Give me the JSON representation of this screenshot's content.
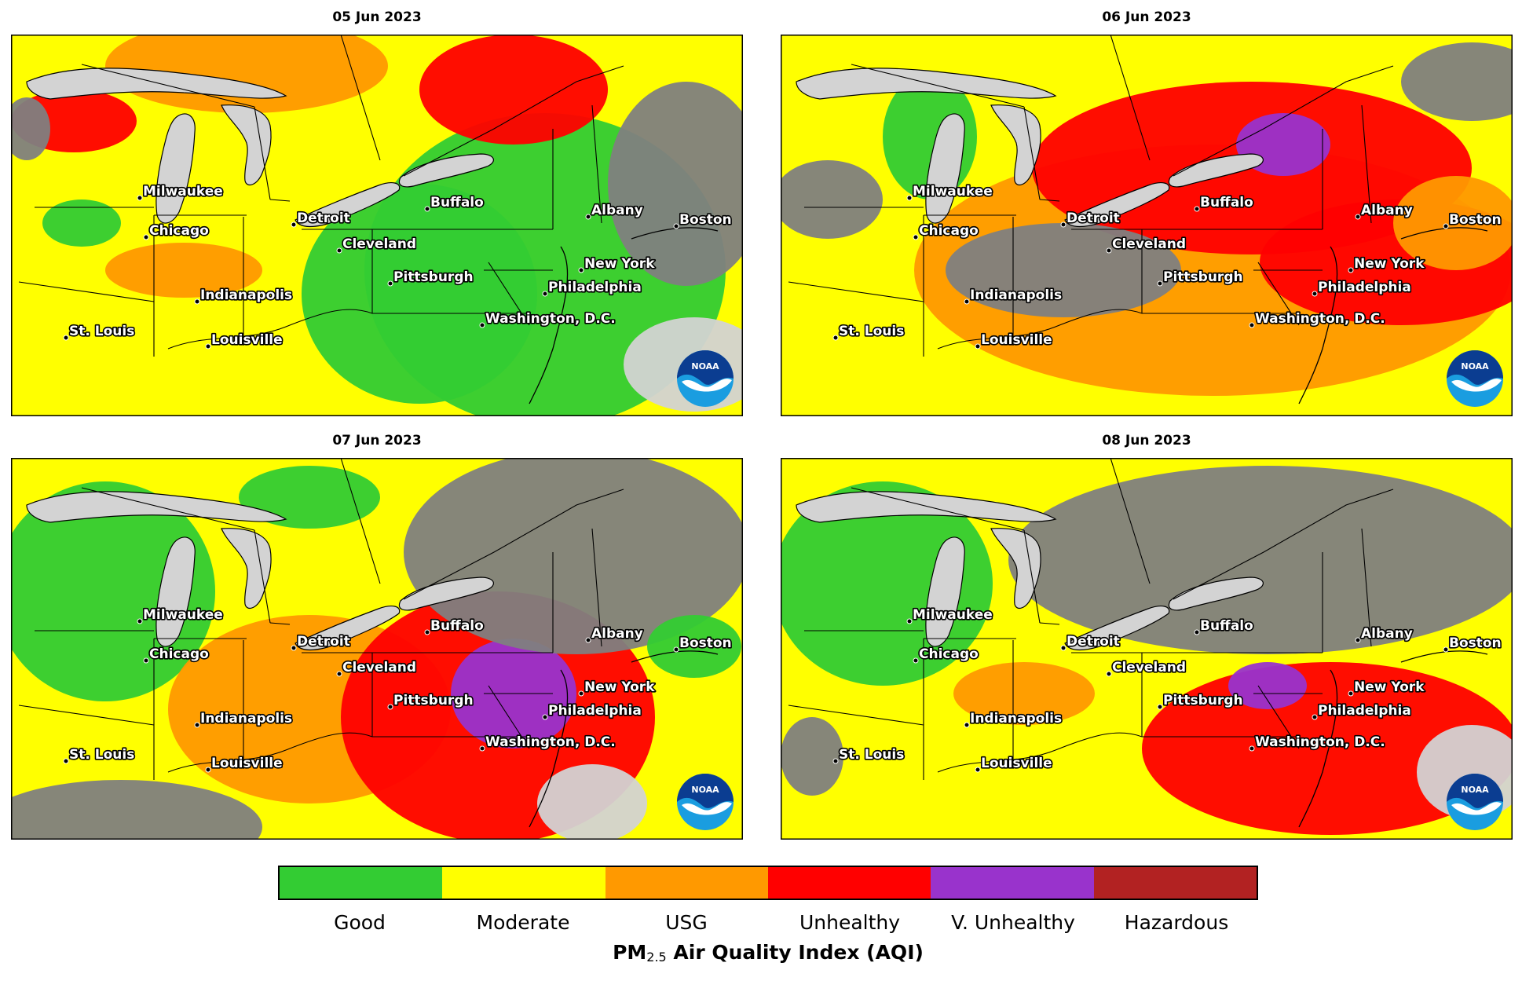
{
  "panels": [
    {
      "title": "05 Jun 2023"
    },
    {
      "title": "06 Jun 2023"
    },
    {
      "title": "07 Jun 2023"
    },
    {
      "title": "08 Jun 2023"
    }
  ],
  "cities": [
    "Milwaukee",
    "Chicago",
    "Detroit",
    "Cleveland",
    "Buffalo",
    "Albany",
    "Boston",
    "New York",
    "Philadelphia",
    "Pittsburgh",
    "Washington, D.C.",
    "Indianapolis",
    "Louisville",
    "St. Louis"
  ],
  "logo": {
    "text": "NOAA",
    "colors": {
      "top": "#0b3d91",
      "wave": "#ffffff",
      "bottom": "#1a9de0"
    }
  },
  "legend": {
    "categories": [
      {
        "label": "Good",
        "color": "#33cc33"
      },
      {
        "label": "Moderate",
        "color": "#ffff00"
      },
      {
        "label": "USG",
        "color": "#ff9900"
      },
      {
        "label": "Unhealthy",
        "color": "#ff0000"
      },
      {
        "label": "V. Unhealthy",
        "color": "#9933cc"
      },
      {
        "label": "Hazardous",
        "color": "#b22222"
      }
    ],
    "title_prefix": "PM",
    "title_subscript": "2.5",
    "title_suffix": " Air Quality Index (AQI)"
  },
  "colors": {
    "no_data": "#808080",
    "water": "#d3d3d3"
  }
}
